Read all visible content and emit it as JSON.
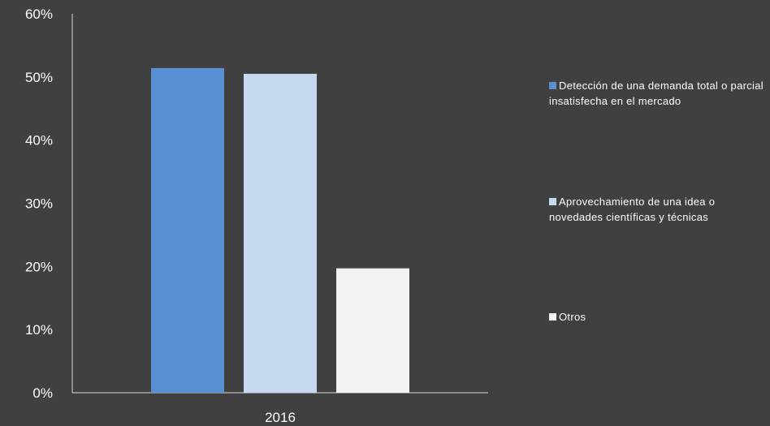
{
  "chart_data": {
    "type": "bar",
    "categories": [
      "2016"
    ],
    "series": [
      {
        "name": "Detección de una demanda total o parcial insatisfecha en el mercado",
        "values": [
          0.514
        ],
        "color": "#5b8fd4"
      },
      {
        "name": "Aprovechamiento de una idea o novedades científicas y técnicas",
        "values": [
          0.505
        ],
        "color": "#c6d9f1"
      },
      {
        "name": "Otros",
        "values": [
          0.197
        ],
        "color": "#f2f2f2"
      }
    ],
    "ylim": [
      0,
      0.6
    ],
    "yticks": [
      "0%",
      "10%",
      "20%",
      "30%",
      "40%",
      "50%",
      "60%"
    ],
    "grid": false,
    "legend_position": "right"
  }
}
